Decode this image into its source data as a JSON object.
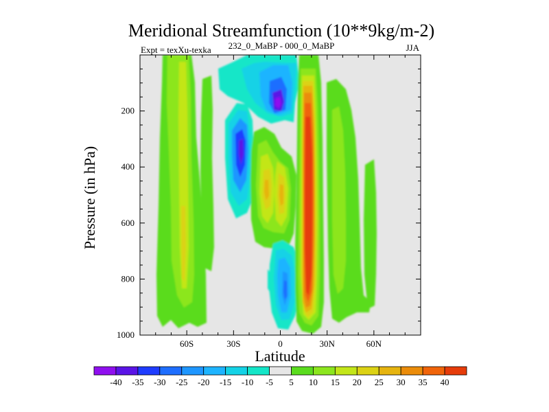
{
  "chart_data": {
    "type": "filled-contour",
    "title": "Meridional Streamfunction (10**9kg/m-2)",
    "subtitle_left": "Expt = texXu-texka",
    "subtitle_center": "232_0_MaBP - 000_0_MaBP",
    "subtitle_right": "JJA",
    "xlabel": "Latitude",
    "ylabel": "Pressure (in hPa)",
    "xlim": [
      -90,
      90
    ],
    "ylim": [
      1000,
      0
    ],
    "x_ticks": [
      {
        "value": -60,
        "label": "60S"
      },
      {
        "value": -30,
        "label": "30S"
      },
      {
        "value": 0,
        "label": "0"
      },
      {
        "value": 30,
        "label": "30N"
      },
      {
        "value": 60,
        "label": "60N"
      }
    ],
    "y_ticks": [
      {
        "value": 200,
        "label": "200"
      },
      {
        "value": 400,
        "label": "400"
      },
      {
        "value": 600,
        "label": "600"
      },
      {
        "value": 800,
        "label": "800"
      },
      {
        "value": 1000,
        "label": "1000"
      }
    ],
    "missing_color": "#e6e6e6",
    "colorbar": {
      "labels": [
        "-40",
        "-35",
        "-30",
        "-25",
        "-20",
        "-15",
        "-10",
        "-5",
        "5",
        "10",
        "15",
        "20",
        "25",
        "30",
        "35",
        "40"
      ],
      "colors": [
        "#8f0fef",
        "#5a14e6",
        "#1e3cff",
        "#1e6eff",
        "#1e96ff",
        "#1eb4ff",
        "#14d2e6",
        "#14e6c8",
        "#e6e6e6",
        "#5adc1e",
        "#8ce61e",
        "#c3e619",
        "#dcd214",
        "#e6b40f",
        "#eb8c0a",
        "#f0640a",
        "#e63c0a"
      ]
    },
    "features": [
      {
        "name": "polar-cell-south",
        "lat": [
          -78,
          -52
        ],
        "p": [
          20,
          970
        ],
        "value": 10,
        "core_value": 15,
        "core_lat": [
          -66,
          -60
        ],
        "core_p": [
          300,
          820
        ]
      },
      {
        "name": "south-mid-cell",
        "lat": [
          -50,
          -40
        ],
        "p": [
          60,
          470
        ],
        "value": 10,
        "core_value": 10
      },
      {
        "name": "south-mid-cell-lower",
        "lat": [
          -48,
          -40
        ],
        "p": [
          520,
          790
        ],
        "value": 10
      },
      {
        "name": "upper-anomaly",
        "lat": [
          -32,
          12
        ],
        "p": [
          20,
          120
        ],
        "value": -5,
        "core_value": -15
      },
      {
        "name": "upper-min",
        "lat": [
          0,
          0
        ],
        "p": [
          160,
          160
        ],
        "value": -40
      },
      {
        "name": "southern-subtropical-min",
        "lat": [
          -30,
          -20
        ],
        "p": [
          120,
          590
        ],
        "value": -25,
        "core_value": -35
      },
      {
        "name": "tropical-positive-pair",
        "lat": [
          -17,
          8
        ],
        "p": [
          150,
          740
        ],
        "value": 15,
        "core_value": 25
      },
      {
        "name": "low-level-negative",
        "lat": [
          -5,
          10
        ],
        "p": [
          630,
          960
        ],
        "value": -10,
        "core_value": -25
      },
      {
        "name": "hadley-max",
        "lat": [
          12,
          28
        ],
        "p": [
          20,
          990
        ],
        "value": 40,
        "core_value": 40
      },
      {
        "name": "northern-cell",
        "lat": [
          30,
          48
        ],
        "p": [
          20,
          990
        ],
        "value": 10,
        "core_value": 10
      },
      {
        "name": "north-high-latitude",
        "lat": [
          53,
          62
        ],
        "p": [
          300,
          860
        ],
        "value": 10
      }
    ]
  }
}
